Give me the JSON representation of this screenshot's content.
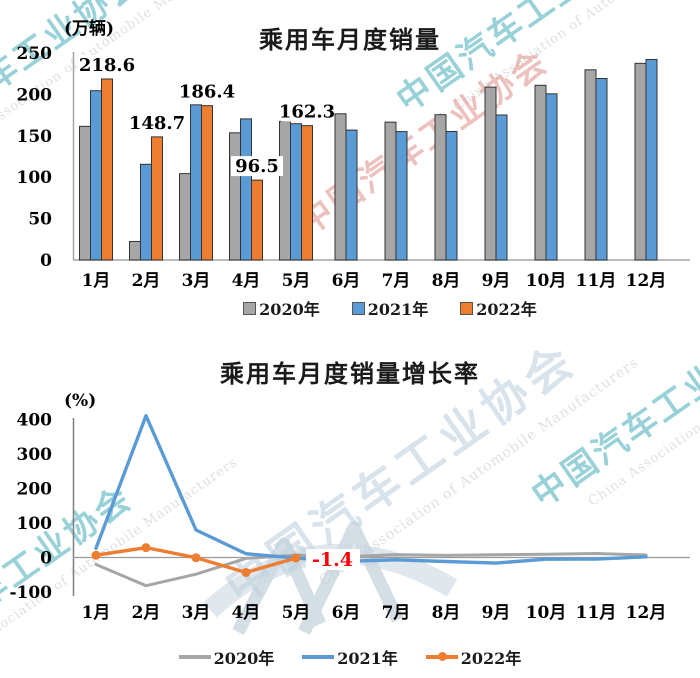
{
  "watermark": {
    "cn_text": "中国汽车工业协会",
    "en_text": "China Association of Automobile Manufacturers",
    "teal_color": "#55b4bf",
    "red_color": "#e29a94",
    "steel_color": "#bfd2de",
    "gray_color": "#c9ccd1"
  },
  "chart_data": [
    {
      "type": "bar",
      "title": "乘用车月度销量",
      "unit_label": "(万辆)",
      "categories": [
        "1月",
        "2月",
        "3月",
        "4月",
        "5月",
        "6月",
        "7月",
        "8月",
        "9月",
        "10月",
        "11月",
        "12月"
      ],
      "yticks": [
        0,
        50,
        100,
        150,
        200,
        250
      ],
      "ylim": [
        0,
        250
      ],
      "grid": false,
      "legend_position": "bottom",
      "series": [
        {
          "name": "2020年",
          "color": "#a6a6a6",
          "values": [
            161.4,
            22.4,
            104.3,
            153.6,
            167.4,
            176.6,
            166.5,
            175.5,
            208.8,
            211.0,
            229.7,
            237.5
          ]
        },
        {
          "name": "2021年",
          "color": "#5b9bd5",
          "values": [
            204.5,
            115.6,
            187.4,
            170.4,
            164.6,
            156.9,
            155.1,
            155.2,
            175.1,
            200.7,
            219.2,
            242.2
          ]
        },
        {
          "name": "2022年",
          "color": "#ed7d31",
          "values": [
            218.6,
            148.7,
            186.4,
            96.5,
            162.3
          ],
          "value_labels": true
        }
      ]
    },
    {
      "type": "line",
      "title": "乘用车月度销量增长率",
      "unit_label": "(%)",
      "categories": [
        "1月",
        "2月",
        "3月",
        "4月",
        "5月",
        "6月",
        "7月",
        "8月",
        "9月",
        "10月",
        "11月",
        "12月"
      ],
      "yticks": [
        -100,
        0,
        100,
        200,
        300,
        400
      ],
      "ylim": [
        -100,
        400
      ],
      "grid": false,
      "legend_position": "bottom",
      "series": [
        {
          "name": "2020年",
          "color": "#a6a6a6",
          "values": [
            -20.2,
            -81.7,
            -48.4,
            -2.6,
            7.0,
            1.8,
            8.5,
            6.0,
            8.0,
            9.3,
            11.6,
            7.2
          ]
        },
        {
          "name": "2021年",
          "color": "#5b9bd5",
          "values": [
            26.8,
            410.9,
            79.7,
            10.9,
            -1.7,
            -11.1,
            -6.8,
            -11.6,
            -16.1,
            -4.9,
            -4.6,
            2.0
          ]
        },
        {
          "name": "2022年",
          "color": "#ed7d31",
          "values": [
            6.7,
            28.6,
            -0.6,
            -43.4,
            -1.4
          ],
          "marker": true
        }
      ],
      "annotation": {
        "text": "-1.4",
        "color": "#ff0000",
        "series": "2022年",
        "category": "5月"
      }
    }
  ]
}
